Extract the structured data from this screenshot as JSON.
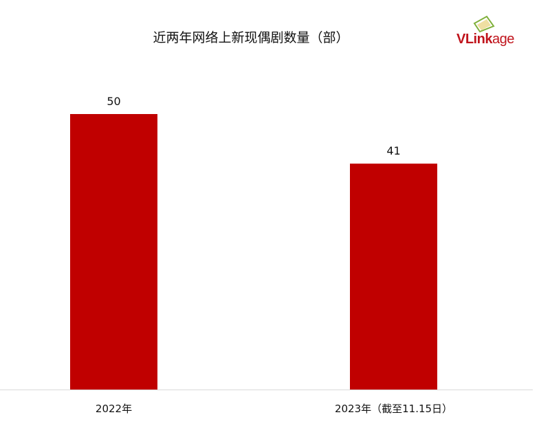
{
  "chart_data": {
    "type": "bar",
    "title": "近两年网络上新现偶剧数量（部）",
    "categories": [
      "2022年",
      "2023年（截至11.15日）"
    ],
    "values": [
      50,
      41
    ],
    "data_labels": [
      "50",
      "41"
    ],
    "ylim": [
      0,
      50
    ],
    "grid": false,
    "bar_color": "#c00000",
    "xlabel": "",
    "ylabel": ""
  },
  "logo": {
    "text_bold": "VLink",
    "text_light": "age",
    "colors": {
      "text": "#c0141c",
      "icon": "#7fb03a"
    }
  }
}
